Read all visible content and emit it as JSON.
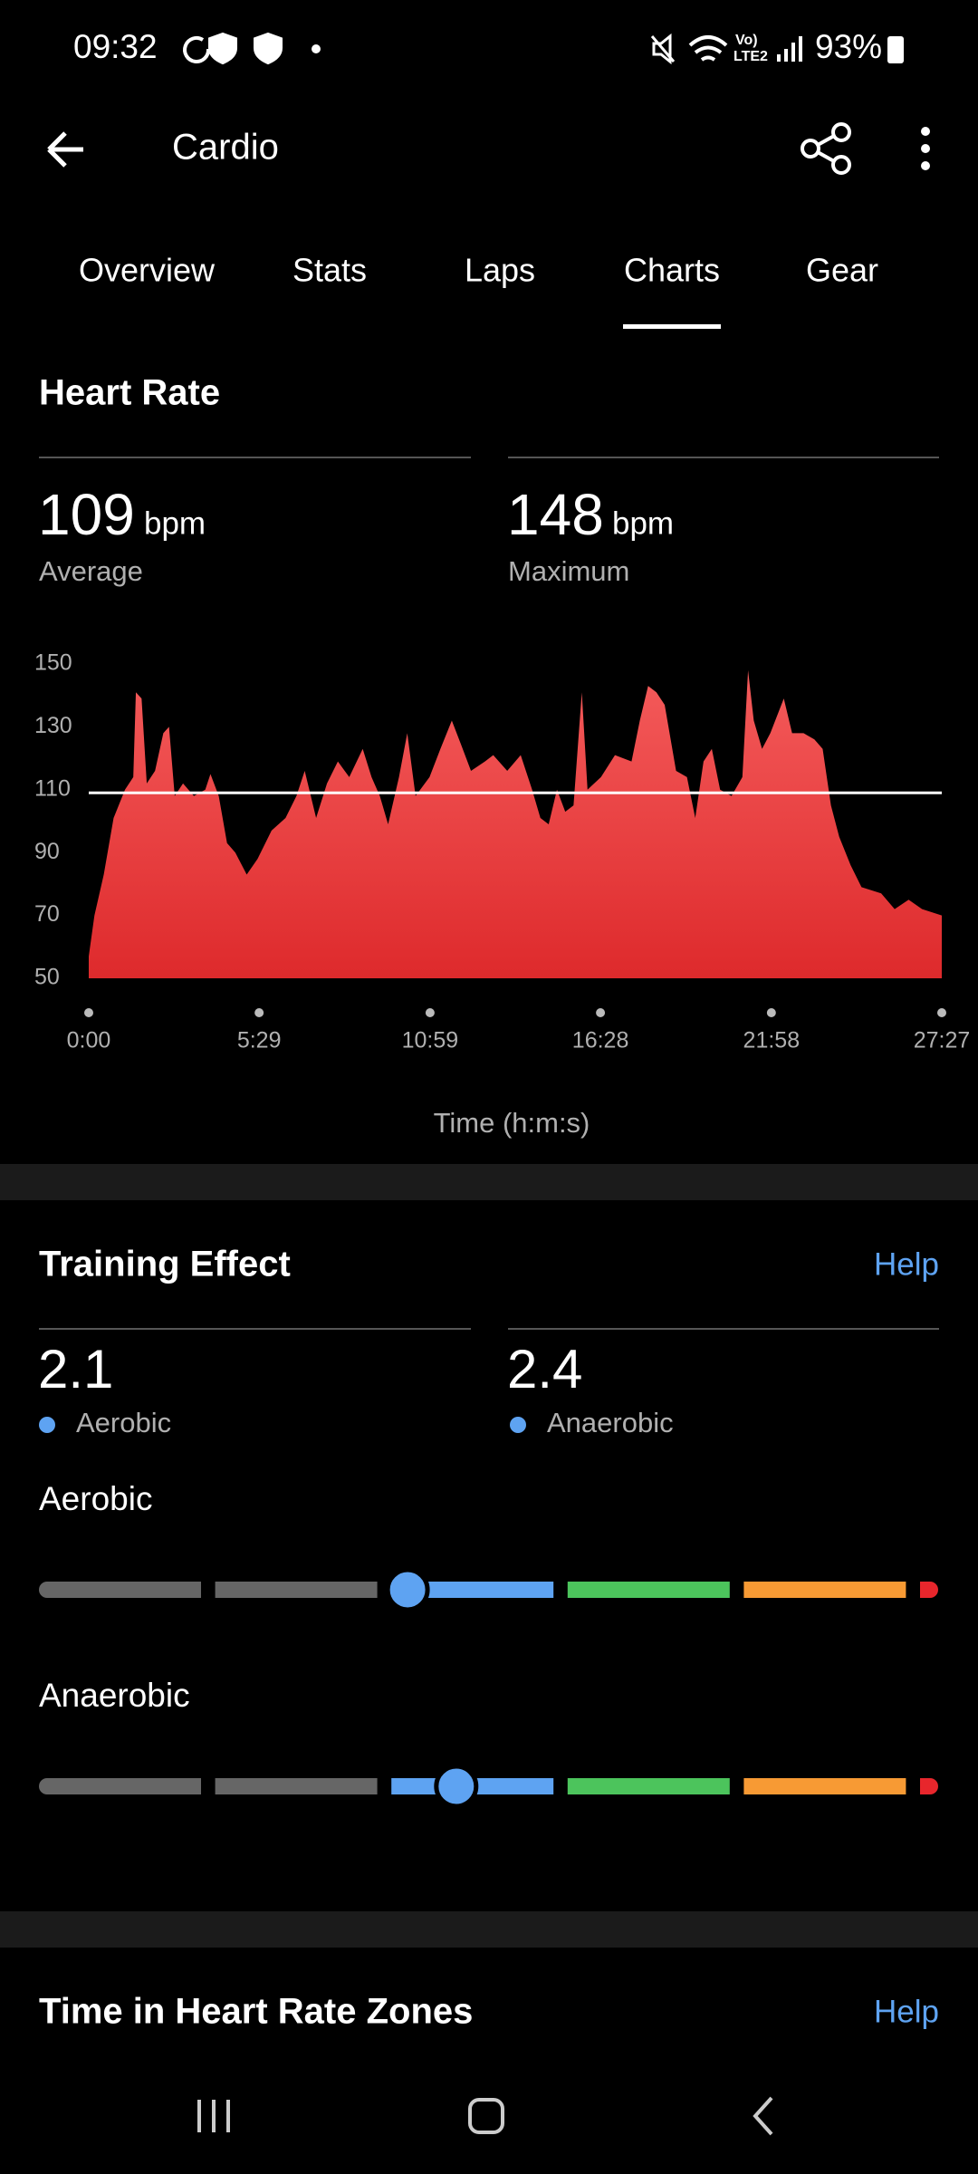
{
  "status_bar": {
    "time": "09:32",
    "volte": "Vo)",
    "network": "LTE2",
    "battery": "93%"
  },
  "app_bar": {
    "title": "Cardio"
  },
  "tabs": [
    "Overview",
    "Stats",
    "Laps",
    "Charts",
    "Gear"
  ],
  "selected_tab": 3,
  "heart_rate": {
    "title": "Heart Rate",
    "stats": [
      {
        "value": 109,
        "unit": "bpm",
        "label": "Average"
      },
      {
        "value": 148,
        "unit": "bpm",
        "label": "Maximum"
      }
    ]
  },
  "chart_data": {
    "type": "area",
    "x_label": "Time (h:m:s)",
    "color_top": "#f45b5b",
    "color_bottom": "#de2a2c",
    "reference_line": 109,
    "reference_color": "#ffffff",
    "x": [
      0,
      11,
      29,
      48,
      70,
      86,
      91,
      102,
      112,
      128,
      144,
      155,
      166,
      182,
      203,
      225,
      235,
      251,
      267,
      283,
      305,
      326,
      353,
      380,
      401,
      417,
      439,
      460,
      481,
      503,
      529,
      546,
      562,
      578,
      599,
      615,
      631,
      658,
      679,
      701,
      722,
      738,
      765,
      781,
      808,
      834,
      856,
      872,
      888,
      904,
      920,
      936,
      952,
      963,
      989,
      1016,
      1048,
      1064,
      1080,
      1096,
      1112,
      1134,
      1155,
      1171,
      1187,
      1203,
      1219,
      1241,
      1262,
      1273,
      1284,
      1300,
      1316,
      1342,
      1358,
      1380,
      1401,
      1417,
      1433,
      1449,
      1471,
      1492,
      1530,
      1556,
      1583,
      1609,
      1647
    ],
    "values": [
      57,
      70,
      83,
      101,
      110,
      114,
      141,
      139,
      112,
      116,
      128,
      130,
      108,
      112,
      108,
      110,
      115,
      108,
      93,
      90,
      83,
      88,
      97,
      101,
      108,
      116,
      101,
      112,
      119,
      114,
      123,
      114,
      108,
      99,
      114,
      128,
      108,
      114,
      123,
      132,
      123,
      116,
      119,
      121,
      116,
      121,
      110,
      101,
      99,
      110,
      103,
      105,
      141,
      110,
      114,
      121,
      119,
      132,
      143,
      141,
      137,
      116,
      114,
      101,
      119,
      123,
      110,
      108,
      114,
      148,
      132,
      123,
      128,
      139,
      128,
      128,
      126,
      123,
      105,
      95,
      86,
      79,
      77,
      72,
      75,
      72,
      70
    ],
    "xlim": [
      0,
      1647
    ],
    "ylim": [
      50,
      150
    ],
    "xticks": [
      {
        "value": 0,
        "label": "0:00"
      },
      {
        "value": 329,
        "label": "5:29"
      },
      {
        "value": 659,
        "label": "10:59"
      },
      {
        "value": 988,
        "label": "16:28"
      },
      {
        "value": 1318,
        "label": "21:58"
      },
      {
        "value": 1647,
        "label": "27:27"
      }
    ],
    "yticks": [
      50,
      70,
      90,
      110,
      130,
      150
    ]
  },
  "training_effect": {
    "title": "Training Effect",
    "help": "Help",
    "stats": [
      {
        "value": 2.1,
        "label": "Aerobic",
        "color": "#5ea3f2"
      },
      {
        "value": 2.4,
        "label": "Anaerobic",
        "color": "#5ea3f2"
      }
    ],
    "bars": [
      {
        "label": "Aerobic",
        "value": 2.1
      },
      {
        "label": "Anaerobic",
        "value": 2.4
      }
    ],
    "zone_colors": [
      "#666666",
      "#666666",
      "#5ea3f2",
      "#4cc45c",
      "#f79a34",
      "#e8262c"
    ]
  },
  "zones": {
    "title": "Time in Heart Rate Zones",
    "help": "Help"
  }
}
